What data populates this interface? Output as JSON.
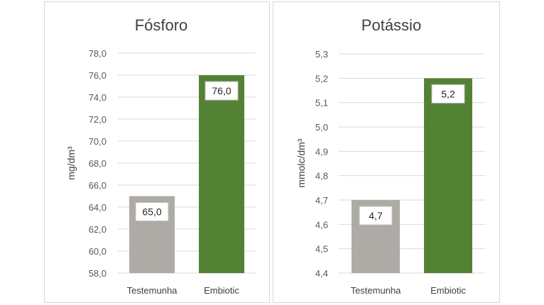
{
  "chart_data": [
    {
      "type": "bar",
      "title": "Fósforo",
      "ylabel": "mg/dm³",
      "categories": [
        "Testemunha",
        "Embiotic"
      ],
      "values": [
        65.0,
        76.0
      ],
      "data_labels": [
        "65,0",
        "76,0"
      ],
      "bar_colors": [
        "#aeaaa6",
        "#548235"
      ],
      "ylim": [
        58.0,
        78.0
      ],
      "yticks": [
        "58,0",
        "60,0",
        "62,0",
        "64,0",
        "66,0",
        "68,0",
        "70,0",
        "72,0",
        "74,0",
        "76,0",
        "78,0"
      ],
      "grid": true
    },
    {
      "type": "bar",
      "title": "Potássio",
      "ylabel": "mmolc/dm³",
      "categories": [
        "Testemunha",
        "Embiotic"
      ],
      "values": [
        4.7,
        5.2
      ],
      "data_labels": [
        "4,7",
        "5,2"
      ],
      "bar_colors": [
        "#aeaaa6",
        "#548235"
      ],
      "ylim": [
        4.4,
        5.3
      ],
      "yticks": [
        "4,4",
        "4,5",
        "4,6",
        "4,7",
        "4,8",
        "4,9",
        "5,0",
        "5,1",
        "5,2",
        "5,3"
      ],
      "grid": true
    }
  ]
}
